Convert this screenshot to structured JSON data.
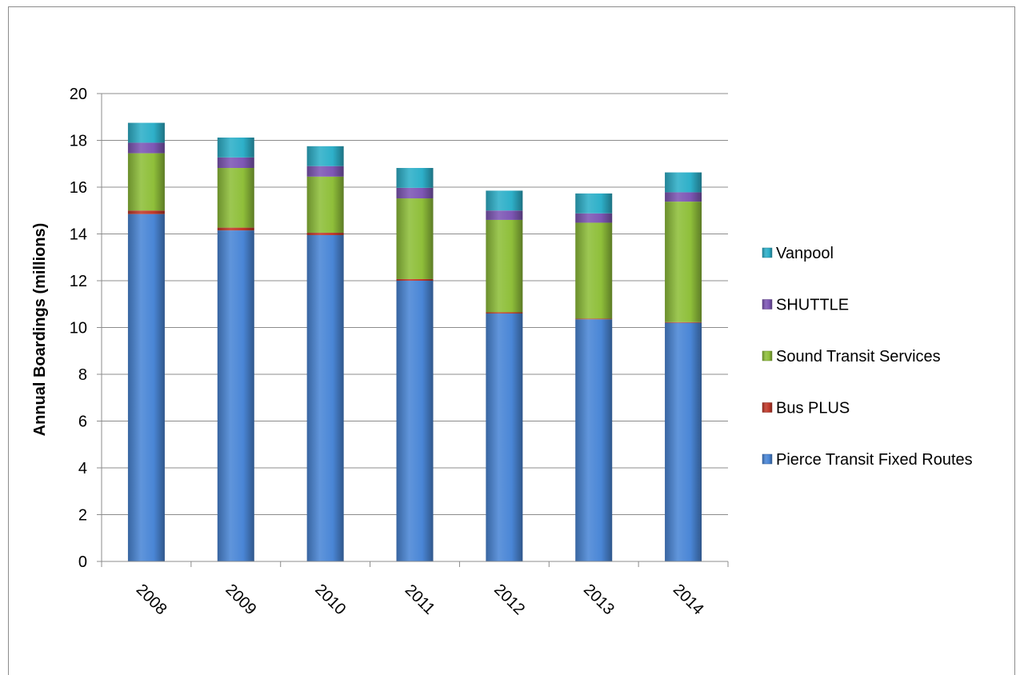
{
  "chart_data": {
    "type": "bar",
    "stacked": true,
    "categories": [
      "2008",
      "2009",
      "2010",
      "2011",
      "2012",
      "2013",
      "2014"
    ],
    "series": [
      {
        "name": "Pierce Transit Fixed Routes",
        "color": "#4a86d6",
        "values": [
          14.85,
          14.15,
          13.95,
          12.0,
          10.6,
          10.35,
          10.2
        ]
      },
      {
        "name": "Bus PLUS",
        "color": "#c0392b",
        "values": [
          0.15,
          0.12,
          0.1,
          0.07,
          0.05,
          0.03,
          0.03
        ]
      },
      {
        "name": "Sound Transit Services",
        "color": "#8fbf3a",
        "values": [
          2.45,
          2.55,
          2.4,
          3.45,
          3.95,
          4.1,
          5.15
        ]
      },
      {
        "name": "SHUTTLE",
        "color": "#7e57b5",
        "values": [
          0.45,
          0.45,
          0.45,
          0.45,
          0.4,
          0.4,
          0.4
        ]
      },
      {
        "name": "Vanpool",
        "color": "#2eb0c9",
        "values": [
          0.85,
          0.85,
          0.85,
          0.85,
          0.85,
          0.85,
          0.85
        ]
      }
    ],
    "ylabel": "Annual Boardings (millions)",
    "xlabel": "",
    "title": "",
    "ylim": [
      0,
      20
    ],
    "yticks": [
      0,
      2,
      4,
      6,
      8,
      10,
      12,
      14,
      16,
      18,
      20
    ],
    "grid": true,
    "legend_position": "right",
    "legend_order": [
      "Vanpool",
      "SHUTTLE",
      "Sound Transit Services",
      "Bus PLUS",
      "Pierce Transit Fixed Routes"
    ]
  }
}
